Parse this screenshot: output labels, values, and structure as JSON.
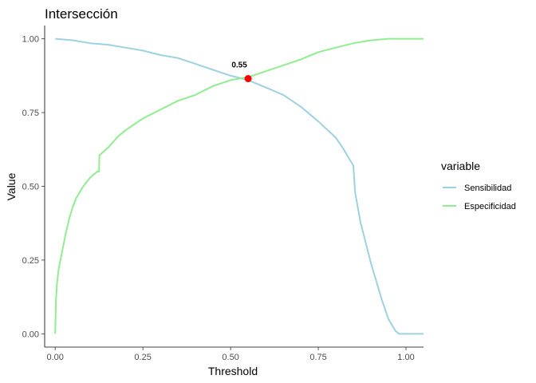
{
  "chart_data": {
    "type": "line",
    "title": "Intersección",
    "xlabel": "Threshold",
    "ylabel": "Value",
    "xlim": [
      -0.03,
      1.05
    ],
    "ylim": [
      -0.045,
      1.045
    ],
    "x_ticks": [
      0,
      0.25,
      0.5,
      0.75,
      1
    ],
    "x_tick_labels": [
      "0.00",
      "0.25",
      "0.50",
      "0.75",
      "1.00"
    ],
    "y_ticks": [
      0,
      0.25,
      0.5,
      0.75,
      1
    ],
    "y_tick_labels": [
      "0.00",
      "0.25",
      "0.50",
      "0.75",
      "1.00"
    ],
    "grid": false,
    "legend": {
      "title": "variable",
      "position": "right"
    },
    "series": [
      {
        "name": "Sensibilidad",
        "color": "#9ed2e1",
        "x": [
          0,
          0.05,
          0.1,
          0.15,
          0.2,
          0.25,
          0.3,
          0.35,
          0.4,
          0.45,
          0.5,
          0.55,
          0.6,
          0.65,
          0.7,
          0.75,
          0.8,
          0.82,
          0.84,
          0.85,
          0.855,
          0.87,
          0.9,
          0.93,
          0.95,
          0.97,
          0.98,
          1.0,
          1.05
        ],
        "y": [
          1.0,
          0.995,
          0.985,
          0.98,
          0.97,
          0.96,
          0.945,
          0.935,
          0.915,
          0.895,
          0.875,
          0.86,
          0.835,
          0.81,
          0.77,
          0.72,
          0.665,
          0.63,
          0.59,
          0.57,
          0.48,
          0.38,
          0.24,
          0.12,
          0.05,
          0.01,
          0.0,
          0.0,
          0.0
        ]
      },
      {
        "name": "Especificidad",
        "color": "#90ee90",
        "x": [
          0,
          0.002,
          0.005,
          0.01,
          0.02,
          0.03,
          0.04,
          0.05,
          0.06,
          0.08,
          0.1,
          0.12,
          0.125,
          0.126,
          0.15,
          0.18,
          0.2,
          0.25,
          0.3,
          0.35,
          0.4,
          0.45,
          0.5,
          0.55,
          0.6,
          0.65,
          0.7,
          0.75,
          0.8,
          0.85,
          0.9,
          0.95,
          1.0,
          1.05
        ],
        "y": [
          0.0,
          0.11,
          0.17,
          0.22,
          0.28,
          0.34,
          0.39,
          0.43,
          0.46,
          0.5,
          0.53,
          0.55,
          0.55,
          0.605,
          0.63,
          0.67,
          0.69,
          0.73,
          0.76,
          0.79,
          0.81,
          0.84,
          0.86,
          0.87,
          0.89,
          0.91,
          0.93,
          0.955,
          0.97,
          0.985,
          0.995,
          1.0,
          1.0,
          1.0
        ]
      }
    ],
    "intersection": {
      "x": 0.55,
      "y": 0.865,
      "label": "0.55",
      "color": "#ff0000"
    }
  }
}
